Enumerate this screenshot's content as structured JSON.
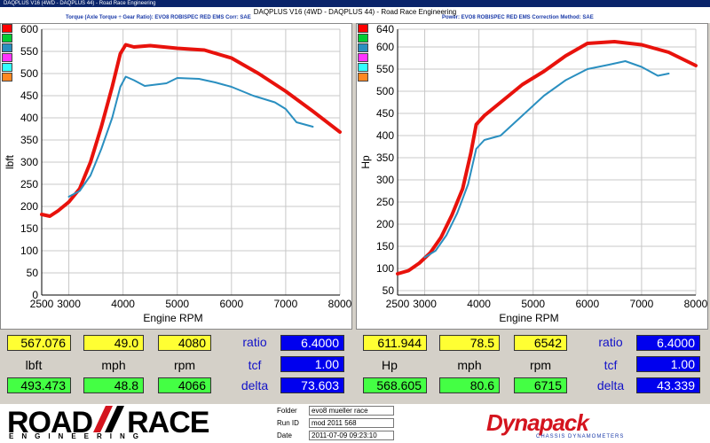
{
  "window_title": "DAQPLUS V16 (4WD - DAQPLUS 44) - Road Race Engineering",
  "header": {
    "title": "DAQPLUS V16 (4WD - DAQPLUS 44) - Road Race Engineering",
    "left_sub": "Torque (Axle Torque ÷ Gear Ratio): EVO8 ROBISPEC RED EMS      Corr: SAE",
    "right_sub": "Power: EVO8 ROBISPEC RED EMS      Correction Method: SAE"
  },
  "swatch_colors": [
    "#ff0000",
    "#00cc33",
    "#2a8fc0",
    "#ff33ff",
    "#33ffff",
    "#ff8822"
  ],
  "chart_data": [
    {
      "type": "line",
      "ylabel": "lbft",
      "xlabel": "Engine RPM",
      "xlim": [
        2500,
        8000
      ],
      "ylim": [
        0,
        600
      ],
      "xticks": [
        2500,
        3000,
        4000,
        5000,
        6000,
        7000,
        8000
      ],
      "yticks": [
        0,
        50,
        100,
        150,
        200,
        250,
        300,
        350,
        400,
        450,
        500,
        550,
        600
      ],
      "series": [
        {
          "color": "#e8120c",
          "x": [
            2500,
            2650,
            2800,
            3000,
            3200,
            3400,
            3600,
            3800,
            3950,
            4050,
            4200,
            4500,
            5000,
            5500,
            6000,
            6500,
            7000,
            7500,
            8000
          ],
          "y": [
            182,
            178,
            190,
            210,
            240,
            300,
            380,
            470,
            545,
            565,
            560,
            563,
            557,
            553,
            535,
            500,
            460,
            415,
            368
          ]
        },
        {
          "color": "#2a8fc0",
          "x": [
            3000,
            3200,
            3400,
            3600,
            3800,
            3950,
            4050,
            4200,
            4400,
            4800,
            5000,
            5400,
            5700,
            6000,
            6400,
            6800,
            7000,
            7200,
            7500
          ],
          "y": [
            222,
            235,
            270,
            330,
            400,
            470,
            493,
            485,
            472,
            478,
            490,
            488,
            480,
            470,
            450,
            435,
            420,
            390,
            380
          ]
        }
      ]
    },
    {
      "type": "line",
      "ylabel": "Hp",
      "xlabel": "Engine RPM",
      "xlim": [
        2500,
        8000
      ],
      "ylim": [
        40,
        640
      ],
      "xticks": [
        2500,
        3000,
        4000,
        5000,
        6000,
        7000,
        8000
      ],
      "yticks": [
        50,
        100,
        150,
        200,
        250,
        300,
        350,
        400,
        450,
        500,
        550,
        600,
        640
      ],
      "series": [
        {
          "color": "#e8120c",
          "x": [
            2500,
            2700,
            2900,
            3100,
            3300,
            3500,
            3700,
            3850,
            3950,
            4100,
            4400,
            4800,
            5200,
            5600,
            6000,
            6500,
            7000,
            7500,
            8000
          ],
          "y": [
            88,
            95,
            112,
            135,
            170,
            220,
            280,
            360,
            425,
            445,
            475,
            515,
            545,
            580,
            608,
            612,
            605,
            588,
            558
          ]
        },
        {
          "color": "#2a8fc0",
          "x": [
            3000,
            3200,
            3400,
            3600,
            3800,
            3950,
            4100,
            4400,
            4800,
            5200,
            5600,
            6000,
            6400,
            6700,
            7000,
            7300,
            7500
          ],
          "y": [
            125,
            140,
            175,
            225,
            290,
            370,
            390,
            400,
            445,
            490,
            525,
            550,
            560,
            568,
            555,
            535,
            540
          ]
        }
      ]
    }
  ],
  "left_readout": {
    "top": [
      "567.076",
      "49.0",
      "4080"
    ],
    "units": [
      "lbft",
      "mph",
      "rpm"
    ],
    "bottom": [
      "493.473",
      "48.8",
      "4066"
    ],
    "labels": [
      "ratio",
      "tcf",
      "delta"
    ],
    "values": [
      "6.4000",
      "1.00",
      "73.603"
    ]
  },
  "right_readout": {
    "top": [
      "611.944",
      "78.5",
      "6542"
    ],
    "units": [
      "Hp",
      "mph",
      "rpm"
    ],
    "bottom": [
      "568.605",
      "80.6",
      "6715"
    ],
    "labels": [
      "ratio",
      "tcf",
      "delta"
    ],
    "values": [
      "6.4000",
      "1.00",
      "43.339"
    ]
  },
  "footer": {
    "logo_left": "ROAD",
    "logo_right": "RACE",
    "logo_sub": "ENGINEERING",
    "folder_label": "Folder",
    "folder_value": "evo8 mueller race",
    "runid_label": "Run ID",
    "runid_value": "mod 2011 568",
    "date_label": "Date",
    "date_value": "2011-07-09 09:23:10",
    "brand": "Dynapack",
    "brand_sub": "CHASSIS DYNAMOMETERS"
  }
}
